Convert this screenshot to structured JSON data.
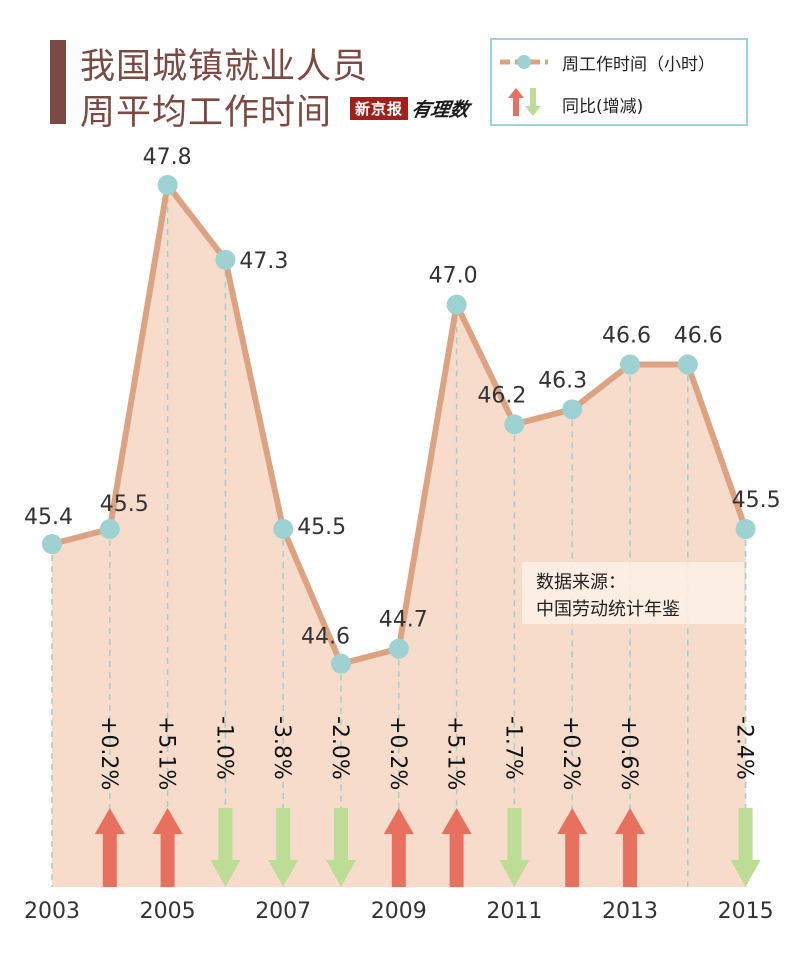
{
  "title": {
    "line1": "我国城镇就业人员",
    "line2": "周平均工作时间"
  },
  "brand": {
    "box": "新京报",
    "script": "有理数"
  },
  "legend": {
    "line_label": "周工作时间（小时）",
    "arrow_label": "同比(增减)"
  },
  "source": {
    "label": "数据来源：",
    "value": "中国劳动统计年鉴"
  },
  "colors": {
    "line": "#dca383",
    "area": "#f8dccb",
    "point": "#9ed1d1",
    "up": "#e8705f",
    "down": "#bddd96",
    "title": "#7b4a43"
  },
  "chart_data": {
    "type": "area",
    "years": [
      2003,
      2004,
      2005,
      2006,
      2007,
      2008,
      2009,
      2010,
      2011,
      2012,
      2013,
      2014,
      2015
    ],
    "hours": [
      45.4,
      45.5,
      47.8,
      47.3,
      45.5,
      44.6,
      44.7,
      47.0,
      46.2,
      46.3,
      46.6,
      46.6,
      45.5
    ],
    "value_labels": [
      "45.4",
      "45.5",
      "47.8",
      "47.3",
      "45.5",
      "44.6",
      "44.7",
      "47.0",
      "46.2",
      "46.3",
      "46.6",
      "46.6",
      "45.5"
    ],
    "x_tick_labels": [
      "2003",
      "2005",
      "2007",
      "2009",
      "2011",
      "2013",
      "2015"
    ],
    "yoy_changes": [
      {
        "year": 2004,
        "label": "+0.2%",
        "direction": "up"
      },
      {
        "year": 2005,
        "label": "+5.1%",
        "direction": "up"
      },
      {
        "year": 2006,
        "label": "-1.0%",
        "direction": "down"
      },
      {
        "year": 2007,
        "label": "-3.8%",
        "direction": "down"
      },
      {
        "year": 2008,
        "label": "-2.0%",
        "direction": "down"
      },
      {
        "year": 2009,
        "label": "+0.2%",
        "direction": "up"
      },
      {
        "year": 2010,
        "label": "+5.1%",
        "direction": "up"
      },
      {
        "year": 2011,
        "label": "-1.7%",
        "direction": "down"
      },
      {
        "year": 2012,
        "label": "+0.2%",
        "direction": "up"
      },
      {
        "year": 2013,
        "label": "+0.6%",
        "direction": "up"
      },
      {
        "year": 2015,
        "label": "-2.4%",
        "direction": "down"
      }
    ],
    "series": [
      {
        "name": "周工作时间（小时）"
      }
    ]
  }
}
